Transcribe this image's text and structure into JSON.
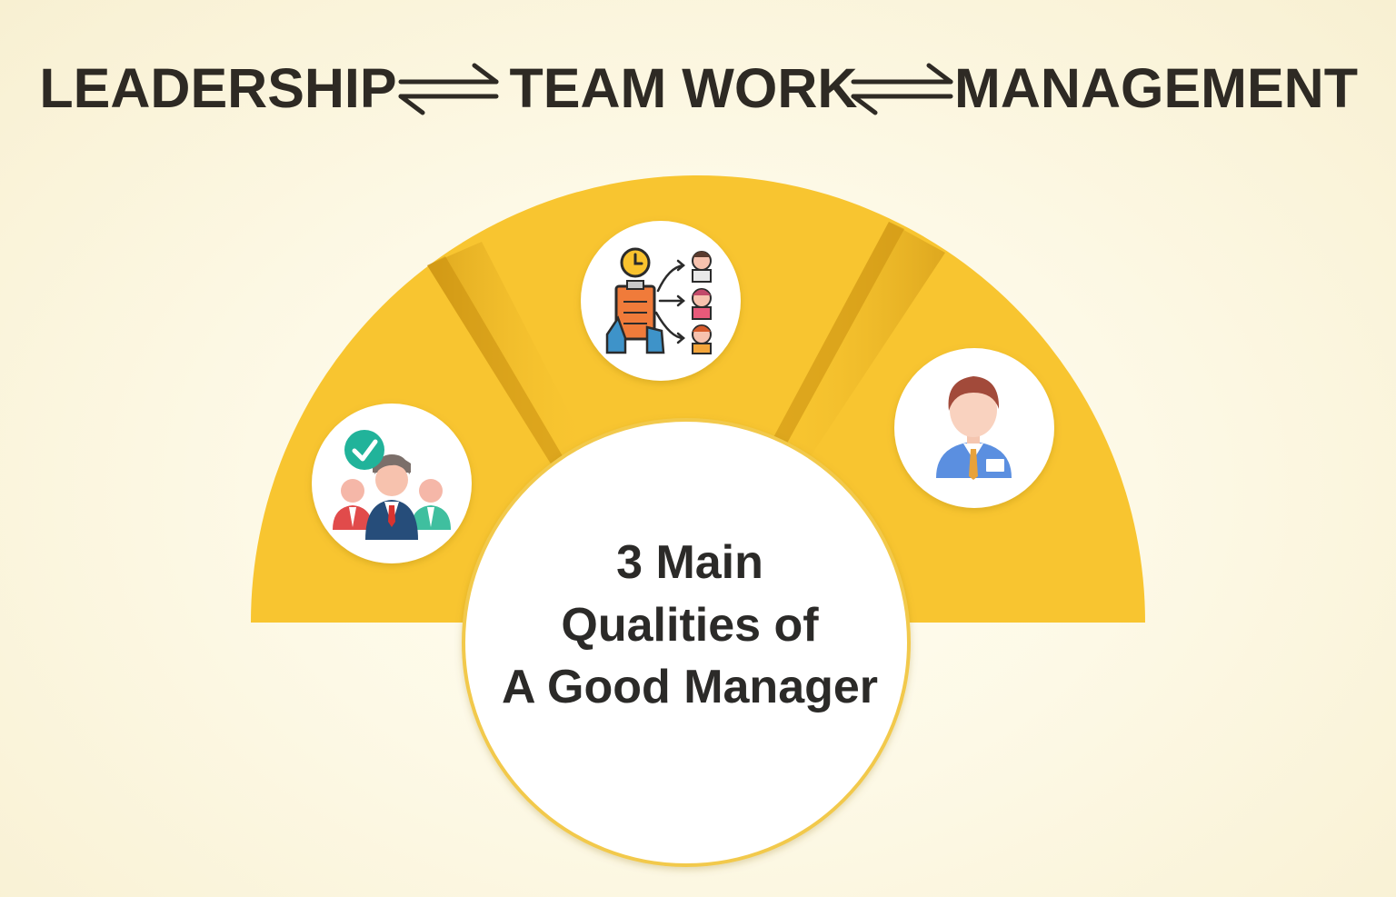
{
  "header": {
    "words": [
      "LEADERSHIP",
      "TEAM WORK",
      "MANAGEMENT"
    ],
    "connector_icon": "two-way-harpoon-arrows"
  },
  "center": {
    "lines": [
      "3 Main",
      "Qualities of",
      "A Good Manager"
    ]
  },
  "segments": [
    {
      "id": "leadership",
      "icon": "team-leader-icon"
    },
    {
      "id": "team-work",
      "icon": "task-delegation-icon"
    },
    {
      "id": "management",
      "icon": "manager-icon"
    }
  ],
  "colors": {
    "background": "#fdf9e6",
    "accent": "#f8c530",
    "accent_shadow": "#d9a017",
    "text": "#2e2a24",
    "circle": "#ffffff",
    "circle_border": "#f2c94c"
  }
}
